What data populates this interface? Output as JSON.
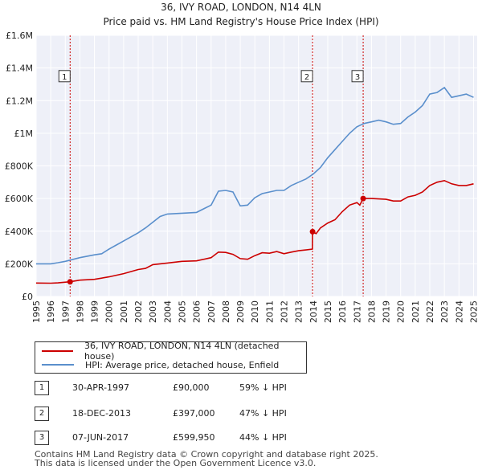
{
  "chart_data": {
    "type": "line",
    "title": "36, IVY ROAD, LONDON, N14 4LN",
    "subtitle": "Price paid vs. HM Land Registry's House Price Index (HPI)",
    "xlim": [
      1995,
      2025.25
    ],
    "ylim": [
      0,
      1600000
    ],
    "y_ticks": [
      {
        "value": 0,
        "label": "£0"
      },
      {
        "value": 200000,
        "label": "£200K"
      },
      {
        "value": 400000,
        "label": "£400K"
      },
      {
        "value": 600000,
        "label": "£600K"
      },
      {
        "value": 800000,
        "label": "£800K"
      },
      {
        "value": 1000000,
        "label": "£1M"
      },
      {
        "value": 1200000,
        "label": "£1.2M"
      },
      {
        "value": 1400000,
        "label": "£1.4M"
      },
      {
        "value": 1600000,
        "label": "£1.6M"
      }
    ],
    "x_ticks": [
      "1995",
      "1996",
      "1997",
      "1998",
      "1999",
      "2000",
      "2001",
      "2002",
      "2003",
      "2004",
      "2005",
      "2006",
      "2007",
      "2008",
      "2009",
      "2010",
      "2011",
      "2012",
      "2013",
      "2014",
      "2015",
      "2016",
      "2017",
      "2018",
      "2019",
      "2020",
      "2021",
      "2022",
      "2023",
      "2024",
      "2025"
    ],
    "series": [
      {
        "name": "36, IVY ROAD, LONDON, N14 4LN (detached house)",
        "color": "#cc0000",
        "points": [
          [
            1995.0,
            82000
          ],
          [
            1996.0,
            81000
          ],
          [
            1996.5,
            83000
          ],
          [
            1997.33,
            90000
          ],
          [
            1998.0,
            100000
          ],
          [
            1999.0,
            105000
          ],
          [
            2000.0,
            120000
          ],
          [
            2001.0,
            140000
          ],
          [
            2002.0,
            165000
          ],
          [
            2002.5,
            172000
          ],
          [
            2003.0,
            195000
          ],
          [
            2004.0,
            205000
          ],
          [
            2005.0,
            215000
          ],
          [
            2006.0,
            218000
          ],
          [
            2007.0,
            238000
          ],
          [
            2007.5,
            272000
          ],
          [
            2008.0,
            270000
          ],
          [
            2008.5,
            258000
          ],
          [
            2009.0,
            232000
          ],
          [
            2009.5,
            228000
          ],
          [
            2010.0,
            250000
          ],
          [
            2010.5,
            268000
          ],
          [
            2011.0,
            265000
          ],
          [
            2011.5,
            275000
          ],
          [
            2012.0,
            262000
          ],
          [
            2012.5,
            272000
          ],
          [
            2013.0,
            280000
          ],
          [
            2013.5,
            285000
          ],
          [
            2013.95,
            290000
          ],
          [
            2013.96,
            397000
          ],
          [
            2014.2,
            385000
          ],
          [
            2014.5,
            420000
          ],
          [
            2015.0,
            450000
          ],
          [
            2015.5,
            470000
          ],
          [
            2016.0,
            520000
          ],
          [
            2016.5,
            560000
          ],
          [
            2017.0,
            575000
          ],
          [
            2017.2,
            560000
          ],
          [
            2017.43,
            599950
          ],
          [
            2018.0,
            600000
          ],
          [
            2019.0,
            595000
          ],
          [
            2019.5,
            585000
          ],
          [
            2020.0,
            585000
          ],
          [
            2020.5,
            610000
          ],
          [
            2021.0,
            620000
          ],
          [
            2021.5,
            640000
          ],
          [
            2022.0,
            680000
          ],
          [
            2022.5,
            700000
          ],
          [
            2023.0,
            710000
          ],
          [
            2023.5,
            690000
          ],
          [
            2024.0,
            680000
          ],
          [
            2024.5,
            680000
          ],
          [
            2025.0,
            690000
          ]
        ]
      },
      {
        "name": "HPI: Average price, detached house, Enfield",
        "color": "#5a8fcc",
        "points": [
          [
            1995.0,
            200000
          ],
          [
            1996.0,
            200000
          ],
          [
            1996.5,
            207000
          ],
          [
            1997.0,
            215000
          ],
          [
            1998.0,
            238000
          ],
          [
            1999.0,
            255000
          ],
          [
            1999.5,
            262000
          ],
          [
            2000.0,
            290000
          ],
          [
            2000.5,
            315000
          ],
          [
            2001.0,
            340000
          ],
          [
            2002.0,
            390000
          ],
          [
            2002.5,
            420000
          ],
          [
            2003.0,
            455000
          ],
          [
            2003.5,
            490000
          ],
          [
            2004.0,
            505000
          ],
          [
            2005.0,
            510000
          ],
          [
            2006.0,
            515000
          ],
          [
            2007.0,
            560000
          ],
          [
            2007.5,
            645000
          ],
          [
            2008.0,
            650000
          ],
          [
            2008.5,
            640000
          ],
          [
            2009.0,
            555000
          ],
          [
            2009.5,
            560000
          ],
          [
            2010.0,
            605000
          ],
          [
            2010.5,
            630000
          ],
          [
            2011.0,
            640000
          ],
          [
            2011.5,
            650000
          ],
          [
            2012.0,
            650000
          ],
          [
            2012.5,
            680000
          ],
          [
            2013.0,
            700000
          ],
          [
            2013.5,
            720000
          ],
          [
            2014.0,
            750000
          ],
          [
            2014.5,
            790000
          ],
          [
            2015.0,
            850000
          ],
          [
            2015.5,
            900000
          ],
          [
            2016.0,
            950000
          ],
          [
            2016.5,
            1000000
          ],
          [
            2017.0,
            1040000
          ],
          [
            2017.5,
            1060000
          ],
          [
            2018.0,
            1070000
          ],
          [
            2018.5,
            1080000
          ],
          [
            2019.0,
            1070000
          ],
          [
            2019.5,
            1055000
          ],
          [
            2020.0,
            1060000
          ],
          [
            2020.5,
            1100000
          ],
          [
            2021.0,
            1130000
          ],
          [
            2021.5,
            1170000
          ],
          [
            2022.0,
            1240000
          ],
          [
            2022.5,
            1250000
          ],
          [
            2023.0,
            1280000
          ],
          [
            2023.5,
            1220000
          ],
          [
            2024.0,
            1230000
          ],
          [
            2024.5,
            1240000
          ],
          [
            2025.0,
            1220000
          ]
        ]
      }
    ],
    "sales": [
      {
        "num": "1",
        "x": 1997.33,
        "value": 90000,
        "date": "30-APR-1997",
        "price": "£90,000",
        "hpi": "59% ↓ HPI"
      },
      {
        "num": "2",
        "x": 2013.96,
        "value": 397000,
        "date": "18-DEC-2013",
        "price": "£397,000",
        "hpi": "47% ↓ HPI"
      },
      {
        "num": "3",
        "x": 2017.43,
        "value": 599950,
        "date": "07-JUN-2017",
        "price": "£599,950",
        "hpi": "44% ↓ HPI"
      }
    ],
    "marker_label_value": 1350000
  },
  "footer": {
    "line1": "Contains HM Land Registry data © Crown copyright and database right 2025.",
    "line2": "This data is licensed under the Open Government Licence v3.0."
  }
}
